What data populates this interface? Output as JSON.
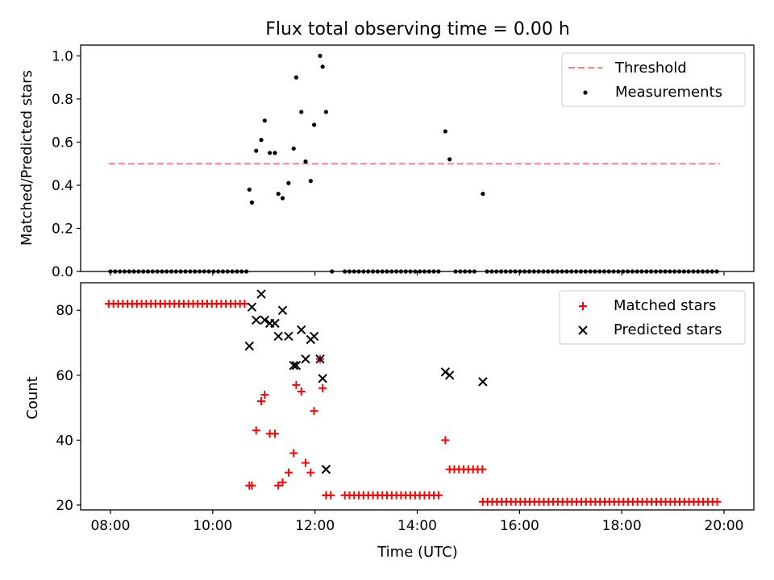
{
  "figure_title": "Flux total observing time = 0.00 h",
  "chart_data": [
    {
      "type": "scatter",
      "title": "Flux total observing time = 0.00 h",
      "xlabel": "",
      "ylabel": "Matched/Predicted stars",
      "xlim": [
        "07:25",
        "20:35"
      ],
      "ylim": [
        0,
        1.05
      ],
      "xticks": [
        "08:00",
        "10:00",
        "12:00",
        "14:00",
        "16:00",
        "18:00",
        "20:00"
      ],
      "yticks": [
        "0.0",
        "0.2",
        "0.4",
        "0.6",
        "0.8",
        "1.0"
      ],
      "grid": false,
      "legend_position": "top-right",
      "threshold": {
        "name": "Threshold",
        "y": 0.5,
        "x_start": "07:58",
        "x_end": "19:55",
        "color": "#ff7f7f",
        "style": "dashed"
      },
      "series": [
        {
          "name": "Measurements",
          "marker": "dot",
          "color": "#000000",
          "x": [
            "10:43",
            "10:46",
            "10:51",
            "10:57",
            "11:01",
            "11:07",
            "11:13",
            "11:17",
            "11:22",
            "11:29",
            "11:35",
            "11:38",
            "11:44",
            "11:49",
            "11:55",
            "11:59",
            "12:06",
            "12:09",
            "12:13",
            "14:33",
            "14:38",
            "15:17"
          ],
          "y": [
            0.38,
            0.32,
            0.56,
            0.61,
            0.7,
            0.55,
            0.55,
            0.36,
            0.34,
            0.41,
            0.57,
            0.9,
            0.74,
            0.51,
            0.42,
            0.68,
            1.0,
            0.95,
            0.74,
            0.65,
            0.52,
            0.36
          ],
          "zero_runs": [
            {
              "from": "08:00",
              "to": "10:40",
              "y": 0
            },
            {
              "from": "12:20",
              "to": "12:20",
              "y": 0
            },
            {
              "from": "12:35",
              "to": "14:30",
              "y": 0
            },
            {
              "from": "14:45",
              "to": "15:12",
              "y": 0
            },
            {
              "from": "15:22",
              "to": "19:55",
              "y": 0
            }
          ]
        }
      ]
    },
    {
      "type": "scatter",
      "title": "",
      "xlabel": "Time (UTC)",
      "ylabel": "Count",
      "xlim": [
        "07:25",
        "20:35"
      ],
      "ylim": [
        18.5,
        88.5
      ],
      "xticks": [
        "08:00",
        "10:00",
        "12:00",
        "14:00",
        "16:00",
        "18:00",
        "20:00"
      ],
      "yticks": [
        "20",
        "40",
        "60",
        "80"
      ],
      "grid": false,
      "legend_position": "top-right",
      "series": [
        {
          "name": "Matched stars",
          "marker": "plus",
          "color": "#ff0000",
          "x": [
            "10:43",
            "10:46",
            "10:51",
            "10:57",
            "11:01",
            "11:07",
            "11:13",
            "11:17",
            "11:22",
            "11:29",
            "11:35",
            "11:38",
            "11:44",
            "11:49",
            "11:55",
            "11:59",
            "12:06",
            "12:09",
            "12:13",
            "14:33"
          ],
          "y": [
            26,
            26,
            43,
            52,
            54,
            42,
            42,
            26,
            27,
            30,
            36,
            57,
            55,
            33,
            30,
            49,
            65,
            56,
            23,
            40
          ],
          "runs": [
            {
              "from": "07:58",
              "to": "10:40",
              "y": 82
            },
            {
              "from": "12:13",
              "to": "12:20",
              "y": 23
            },
            {
              "from": "12:35",
              "to": "14:30",
              "y": 23
            },
            {
              "from": "14:38",
              "to": "15:17",
              "y": 31
            },
            {
              "from": "15:17",
              "to": "19:55",
              "y": 21
            }
          ]
        },
        {
          "name": "Predicted stars",
          "marker": "x",
          "color": "#000000",
          "x": [
            "10:43",
            "10:46",
            "10:51",
            "10:57",
            "11:01",
            "11:07",
            "11:13",
            "11:17",
            "11:22",
            "11:29",
            "11:35",
            "11:38",
            "11:44",
            "11:49",
            "11:55",
            "11:59",
            "12:06",
            "12:09",
            "12:13",
            "14:33",
            "14:38",
            "15:17"
          ],
          "y": [
            69,
            81,
            77,
            85,
            77,
            76,
            76,
            72,
            80,
            72,
            63,
            63,
            74,
            65,
            71,
            72,
            65,
            59,
            31,
            61,
            60,
            58
          ]
        }
      ]
    }
  ]
}
